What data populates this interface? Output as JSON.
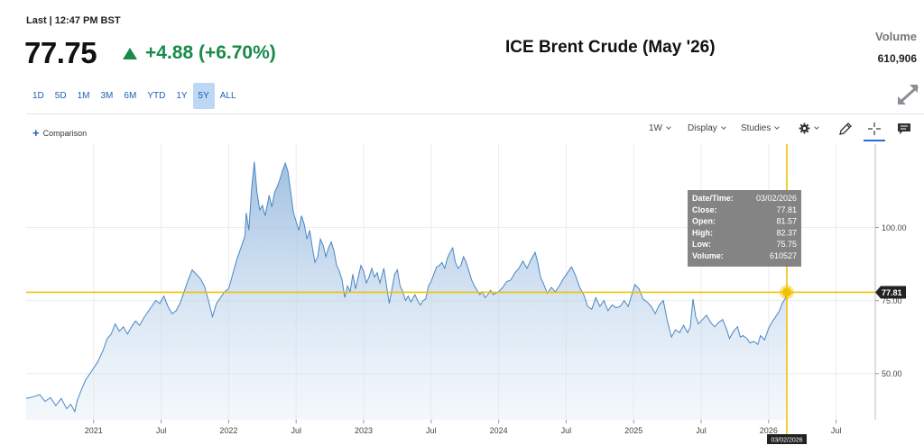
{
  "header": {
    "last_label": "Last | 12:47 PM BST",
    "price": "77.75",
    "change": "+4.88 (+6.70%)",
    "title": "ICE Brent Crude (May '26)",
    "volume_label": "Volume",
    "volume_value": "610,906"
  },
  "range_buttons": [
    "1D",
    "5D",
    "1M",
    "3M",
    "6M",
    "YTD",
    "1Y",
    "5Y",
    "ALL"
  ],
  "active_range": "5Y",
  "toolbar": {
    "comparison": "Comparison",
    "interval": "1W",
    "display": "Display",
    "studies": "Studies"
  },
  "icons": {
    "up": "triangle-up-icon",
    "expand": "expand-arrows-icon",
    "plus": "plus-icon",
    "settings": "gear-icon",
    "draw": "pencil-icon",
    "crosshair": "crosshair-icon",
    "comment": "comment-icon"
  },
  "tooltip": {
    "rows": [
      {
        "label": "Date/Time:",
        "value": "03/02/2026"
      },
      {
        "label": "Close:",
        "value": "77.81"
      },
      {
        "label": "Open:",
        "value": "81.57"
      },
      {
        "label": "High:",
        "value": "82.37"
      },
      {
        "label": "Low:",
        "value": "75.75"
      },
      {
        "label": "Volume:",
        "value": "610527"
      }
    ]
  },
  "crosshair": {
    "price_label": "77.81",
    "date_label": "03/02/2026"
  },
  "colors": {
    "line": "#4a86c5",
    "crosshair": "#f2c200",
    "positive": "#1a8a4a",
    "accent": "#1f5fb0"
  },
  "chart_data": {
    "type": "area",
    "x_tick_labels": [
      "2021",
      "Jul",
      "2022",
      "Jul",
      "2023",
      "Jul",
      "2024",
      "Jul",
      "2025",
      "Jul",
      "2026",
      "Jul"
    ],
    "x_tick_years": [
      2021.0,
      2021.5,
      2022.0,
      2022.5,
      2023.0,
      2023.5,
      2024.0,
      2024.5,
      2025.0,
      2025.5,
      2026.0,
      2026.5
    ],
    "y_ticks": [
      50,
      75,
      100
    ],
    "y_tick_labels": [
      "50.00",
      "75.00",
      "100.00"
    ],
    "xlim": [
      2020.5,
      2026.79
    ],
    "ylim": [
      34.2,
      128.5
    ],
    "series": [
      {
        "points": [
          [
            2020.5,
            41.5
          ],
          [
            2020.55,
            42.0
          ],
          [
            2020.6,
            42.8
          ],
          [
            2020.64,
            40.5
          ],
          [
            2020.68,
            41.8
          ],
          [
            2020.72,
            39.0
          ],
          [
            2020.76,
            41.5
          ],
          [
            2020.8,
            38.0
          ],
          [
            2020.83,
            39.5
          ],
          [
            2020.86,
            37.0
          ],
          [
            2020.88,
            41.0
          ],
          [
            2020.91,
            44.5
          ],
          [
            2020.94,
            47.8
          ],
          [
            2020.98,
            50.5
          ],
          [
            2021.03,
            54.0
          ],
          [
            2021.07,
            58.0
          ],
          [
            2021.1,
            62.0
          ],
          [
            2021.13,
            63.5
          ],
          [
            2021.16,
            67.0
          ],
          [
            2021.19,
            64.5
          ],
          [
            2021.22,
            66.0
          ],
          [
            2021.25,
            63.5
          ],
          [
            2021.28,
            66.0
          ],
          [
            2021.31,
            68.0
          ],
          [
            2021.34,
            66.5
          ],
          [
            2021.37,
            69.0
          ],
          [
            2021.4,
            71.0
          ],
          [
            2021.43,
            73.0
          ],
          [
            2021.46,
            75.0
          ],
          [
            2021.49,
            74.0
          ],
          [
            2021.52,
            76.5
          ],
          [
            2021.55,
            73.0
          ],
          [
            2021.58,
            70.5
          ],
          [
            2021.61,
            71.5
          ],
          [
            2021.64,
            74.0
          ],
          [
            2021.67,
            78.0
          ],
          [
            2021.7,
            82.0
          ],
          [
            2021.73,
            85.5
          ],
          [
            2021.76,
            84.0
          ],
          [
            2021.79,
            82.5
          ],
          [
            2021.82,
            80.0
          ],
          [
            2021.85,
            75.0
          ],
          [
            2021.88,
            69.5
          ],
          [
            2021.91,
            74.0
          ],
          [
            2021.94,
            76.0
          ],
          [
            2021.97,
            78.0
          ],
          [
            2022.0,
            79.0
          ],
          [
            2022.03,
            84.0
          ],
          [
            2022.06,
            89.0
          ],
          [
            2022.09,
            93.0
          ],
          [
            2022.12,
            97.0
          ],
          [
            2022.13,
            105.0
          ],
          [
            2022.15,
            99.0
          ],
          [
            2022.17,
            113.0
          ],
          [
            2022.19,
            122.5
          ],
          [
            2022.21,
            112.0
          ],
          [
            2022.23,
            106.0
          ],
          [
            2022.25,
            107.5
          ],
          [
            2022.27,
            104.0
          ],
          [
            2022.3,
            111.0
          ],
          [
            2022.32,
            107.0
          ],
          [
            2022.34,
            112.0
          ],
          [
            2022.36,
            114.0
          ],
          [
            2022.38,
            116.5
          ],
          [
            2022.4,
            119.5
          ],
          [
            2022.42,
            122.0
          ],
          [
            2022.44,
            119.0
          ],
          [
            2022.46,
            112.0
          ],
          [
            2022.48,
            105.0
          ],
          [
            2022.5,
            102.0
          ],
          [
            2022.52,
            99.0
          ],
          [
            2022.54,
            104.0
          ],
          [
            2022.56,
            101.0
          ],
          [
            2022.58,
            96.0
          ],
          [
            2022.6,
            99.0
          ],
          [
            2022.62,
            93.0
          ],
          [
            2022.64,
            88.0
          ],
          [
            2022.66,
            90.0
          ],
          [
            2022.68,
            96.0
          ],
          [
            2022.7,
            94.0
          ],
          [
            2022.72,
            90.0
          ],
          [
            2022.74,
            93.0
          ],
          [
            2022.76,
            95.0
          ],
          [
            2022.78,
            92.0
          ],
          [
            2022.8,
            87.0
          ],
          [
            2022.82,
            85.0
          ],
          [
            2022.84,
            82.0
          ],
          [
            2022.86,
            76.0
          ],
          [
            2022.88,
            80.0
          ],
          [
            2022.9,
            78.0
          ],
          [
            2022.92,
            84.0
          ],
          [
            2022.94,
            79.0
          ],
          [
            2022.96,
            83.0
          ],
          [
            2022.98,
            87.0
          ],
          [
            2023.0,
            85.0
          ],
          [
            2023.02,
            81.0
          ],
          [
            2023.04,
            83.0
          ],
          [
            2023.06,
            86.0
          ],
          [
            2023.08,
            83.0
          ],
          [
            2023.1,
            84.5
          ],
          [
            2023.12,
            81.0
          ],
          [
            2023.15,
            86.0
          ],
          [
            2023.17,
            80.0
          ],
          [
            2023.19,
            74.0
          ],
          [
            2023.21,
            79.0
          ],
          [
            2023.23,
            84.0
          ],
          [
            2023.25,
            85.5
          ],
          [
            2023.27,
            80.0
          ],
          [
            2023.29,
            78.0
          ],
          [
            2023.31,
            75.0
          ],
          [
            2023.33,
            76.5
          ],
          [
            2023.35,
            74.5
          ],
          [
            2023.38,
            77.0
          ],
          [
            2023.4,
            75.0
          ],
          [
            2023.42,
            73.5
          ],
          [
            2023.44,
            75.0
          ],
          [
            2023.46,
            75.5
          ],
          [
            2023.48,
            80.0
          ],
          [
            2023.5,
            81.5
          ],
          [
            2023.52,
            84.0
          ],
          [
            2023.54,
            86.5
          ],
          [
            2023.56,
            87.0
          ],
          [
            2023.58,
            88.0
          ],
          [
            2023.6,
            86.0
          ],
          [
            2023.62,
            89.5
          ],
          [
            2023.64,
            91.5
          ],
          [
            2023.66,
            93.0
          ],
          [
            2023.68,
            88.0
          ],
          [
            2023.7,
            86.0
          ],
          [
            2023.72,
            87.0
          ],
          [
            2023.74,
            90.0
          ],
          [
            2023.76,
            88.0
          ],
          [
            2023.78,
            85.0
          ],
          [
            2023.8,
            82.0
          ],
          [
            2023.82,
            80.0
          ],
          [
            2023.84,
            78.5
          ],
          [
            2023.86,
            77.0
          ],
          [
            2023.88,
            78.0
          ],
          [
            2023.9,
            76.0
          ],
          [
            2023.92,
            77.0
          ],
          [
            2023.94,
            78.5
          ],
          [
            2023.96,
            77.0
          ],
          [
            2024.0,
            78.0
          ],
          [
            2024.03,
            79.5
          ],
          [
            2024.06,
            81.5
          ],
          [
            2024.09,
            82.0
          ],
          [
            2024.12,
            84.5
          ],
          [
            2024.15,
            86.0
          ],
          [
            2024.18,
            88.5
          ],
          [
            2024.21,
            86.0
          ],
          [
            2024.24,
            89.0
          ],
          [
            2024.27,
            91.5
          ],
          [
            2024.29,
            88.0
          ],
          [
            2024.31,
            83.0
          ],
          [
            2024.33,
            81.0
          ],
          [
            2024.36,
            77.5
          ],
          [
            2024.39,
            79.5
          ],
          [
            2024.42,
            78.0
          ],
          [
            2024.45,
            80.0
          ],
          [
            2024.48,
            82.5
          ],
          [
            2024.51,
            84.5
          ],
          [
            2024.54,
            86.5
          ],
          [
            2024.57,
            83.5
          ],
          [
            2024.6,
            79.5
          ],
          [
            2024.63,
            77.0
          ],
          [
            2024.66,
            73.0
          ],
          [
            2024.69,
            72.0
          ],
          [
            2024.72,
            76.0
          ],
          [
            2024.75,
            73.0
          ],
          [
            2024.78,
            75.0
          ],
          [
            2024.81,
            71.5
          ],
          [
            2024.84,
            73.5
          ],
          [
            2024.87,
            72.5
          ],
          [
            2024.9,
            73.0
          ],
          [
            2024.93,
            75.0
          ],
          [
            2024.96,
            73.0
          ],
          [
            2024.98,
            76.0
          ],
          [
            2025.01,
            80.5
          ],
          [
            2025.04,
            79.0
          ],
          [
            2025.07,
            75.5
          ],
          [
            2025.1,
            74.5
          ],
          [
            2025.13,
            73.0
          ],
          [
            2025.16,
            70.5
          ],
          [
            2025.19,
            73.5
          ],
          [
            2025.22,
            75.0
          ],
          [
            2025.25,
            68.0
          ],
          [
            2025.28,
            62.5
          ],
          [
            2025.31,
            65.0
          ],
          [
            2025.34,
            64.0
          ],
          [
            2025.37,
            66.5
          ],
          [
            2025.4,
            64.0
          ],
          [
            2025.42,
            66.0
          ],
          [
            2025.44,
            75.5
          ],
          [
            2025.46,
            69.5
          ],
          [
            2025.48,
            67.0
          ],
          [
            2025.51,
            68.5
          ],
          [
            2025.54,
            70.0
          ],
          [
            2025.57,
            67.5
          ],
          [
            2025.6,
            66.0
          ],
          [
            2025.63,
            67.5
          ],
          [
            2025.66,
            68.5
          ],
          [
            2025.69,
            65.0
          ],
          [
            2025.71,
            62.0
          ],
          [
            2025.74,
            64.5
          ],
          [
            2025.77,
            66.0
          ],
          [
            2025.79,
            62.5
          ],
          [
            2025.81,
            63.0
          ],
          [
            2025.84,
            62.0
          ],
          [
            2025.86,
            60.5
          ],
          [
            2025.89,
            61.0
          ],
          [
            2025.92,
            60.0
          ],
          [
            2025.94,
            63.0
          ],
          [
            2025.97,
            61.5
          ],
          [
            2026.0,
            65.5
          ],
          [
            2026.03,
            68.0
          ],
          [
            2026.06,
            70.0
          ],
          [
            2026.08,
            71.5
          ],
          [
            2026.1,
            74.0
          ],
          [
            2026.12,
            75.5
          ],
          [
            2026.135,
            77.81
          ]
        ]
      }
    ]
  }
}
